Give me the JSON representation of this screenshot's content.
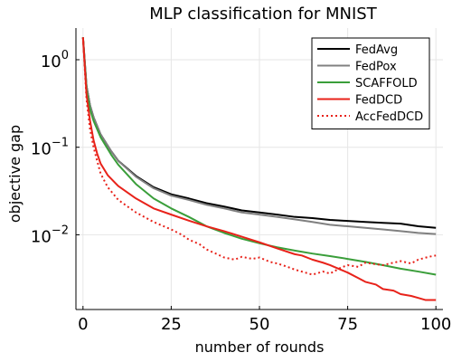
{
  "chart_data": {
    "type": "line",
    "title": "MLP classification for MNIST",
    "xlabel": "number of rounds",
    "ylabel": "objective gap",
    "xlim": [
      -2,
      102
    ],
    "ylim": [
      0.0014,
      2.3
    ],
    "yscale": "log",
    "grid": true,
    "legend_position": "top-right",
    "x_ticks": [
      {
        "value": 0,
        "label": "0"
      },
      {
        "value": 25,
        "label": "25"
      },
      {
        "value": 50,
        "label": "50"
      },
      {
        "value": 75,
        "label": "75"
      },
      {
        "value": 100,
        "label": "100"
      }
    ],
    "y_ticks": [
      {
        "value": 1,
        "base": "10",
        "exp": "0"
      },
      {
        "value": 0.1,
        "base": "10",
        "exp": "−1"
      },
      {
        "value": 0.01,
        "base": "10",
        "exp": "−2"
      }
    ],
    "series": [
      {
        "name": "FedAvg",
        "color": "#000000",
        "dash": "solid",
        "x": [
          0,
          1,
          2,
          3,
          5,
          8,
          10,
          15,
          20,
          25,
          30,
          35,
          40,
          45,
          50,
          55,
          60,
          65,
          70,
          75,
          80,
          85,
          90,
          95,
          100
        ],
        "y": [
          1.8,
          0.5,
          0.3,
          0.22,
          0.14,
          0.09,
          0.07,
          0.047,
          0.035,
          0.029,
          0.026,
          0.023,
          0.021,
          0.019,
          0.018,
          0.017,
          0.016,
          0.0155,
          0.0148,
          0.0144,
          0.014,
          0.0137,
          0.0134,
          0.0125,
          0.012
        ]
      },
      {
        "name": "FedPox",
        "color": "#808080",
        "dash": "solid",
        "x": [
          0,
          1,
          2,
          3,
          5,
          8,
          10,
          15,
          20,
          25,
          30,
          35,
          40,
          45,
          50,
          55,
          60,
          65,
          70,
          75,
          80,
          85,
          90,
          95,
          100
        ],
        "y": [
          1.8,
          0.5,
          0.3,
          0.22,
          0.14,
          0.09,
          0.07,
          0.046,
          0.034,
          0.028,
          0.025,
          0.022,
          0.02,
          0.018,
          0.017,
          0.016,
          0.015,
          0.014,
          0.013,
          0.0125,
          0.012,
          0.0115,
          0.011,
          0.0105,
          0.0102
        ]
      },
      {
        "name": "SCAFFOLD",
        "color": "#3a9e3a",
        "dash": "solid",
        "x": [
          0,
          1,
          2,
          3,
          5,
          8,
          10,
          15,
          20,
          25,
          30,
          35,
          40,
          45,
          50,
          55,
          60,
          65,
          70,
          75,
          80,
          85,
          90,
          95,
          100
        ],
        "y": [
          1.8,
          0.45,
          0.27,
          0.2,
          0.13,
          0.082,
          0.063,
          0.038,
          0.026,
          0.02,
          0.016,
          0.0125,
          0.0105,
          0.009,
          0.008,
          0.0072,
          0.0066,
          0.0061,
          0.0057,
          0.0053,
          0.0049,
          0.0045,
          0.0041,
          0.0038,
          0.0035
        ]
      },
      {
        "name": "FedDCD",
        "color": "#e8221a",
        "dash": "solid",
        "x": [
          0,
          1,
          2,
          3,
          4,
          5,
          7,
          10,
          15,
          20,
          25,
          30,
          35,
          40,
          45,
          50,
          55,
          60,
          62,
          65,
          68,
          70,
          73,
          75,
          78,
          80,
          83,
          85,
          88,
          90,
          93,
          95,
          97,
          100
        ],
        "y": [
          1.8,
          0.4,
          0.2,
          0.12,
          0.085,
          0.065,
          0.048,
          0.036,
          0.026,
          0.02,
          0.017,
          0.0145,
          0.0125,
          0.011,
          0.0095,
          0.0082,
          0.007,
          0.006,
          0.0058,
          0.0052,
          0.0048,
          0.0045,
          0.004,
          0.0037,
          0.0032,
          0.0029,
          0.0027,
          0.0024,
          0.0023,
          0.0021,
          0.002,
          0.0019,
          0.0018,
          0.0018
        ]
      },
      {
        "name": "AccFedDCD",
        "color": "#e8221a",
        "dash": "dotted",
        "x": [
          0,
          1,
          2,
          3,
          4,
          5,
          7,
          10,
          15,
          20,
          25,
          28,
          30,
          33,
          35,
          38,
          40,
          43,
          45,
          48,
          50,
          53,
          55,
          58,
          60,
          63,
          65,
          68,
          70,
          73,
          75,
          78,
          80,
          83,
          85,
          88,
          90,
          93,
          95,
          98,
          100
        ],
        "y": [
          1.8,
          0.35,
          0.16,
          0.1,
          0.07,
          0.05,
          0.035,
          0.025,
          0.018,
          0.014,
          0.0115,
          0.01,
          0.0088,
          0.0078,
          0.0068,
          0.006,
          0.0055,
          0.0052,
          0.0056,
          0.0053,
          0.0055,
          0.0049,
          0.0047,
          0.0043,
          0.004,
          0.0037,
          0.0035,
          0.0038,
          0.0036,
          0.0042,
          0.0045,
          0.0043,
          0.0048,
          0.0046,
          0.0045,
          0.0048,
          0.005,
          0.0047,
          0.0052,
          0.0056,
          0.0058
        ]
      }
    ]
  }
}
